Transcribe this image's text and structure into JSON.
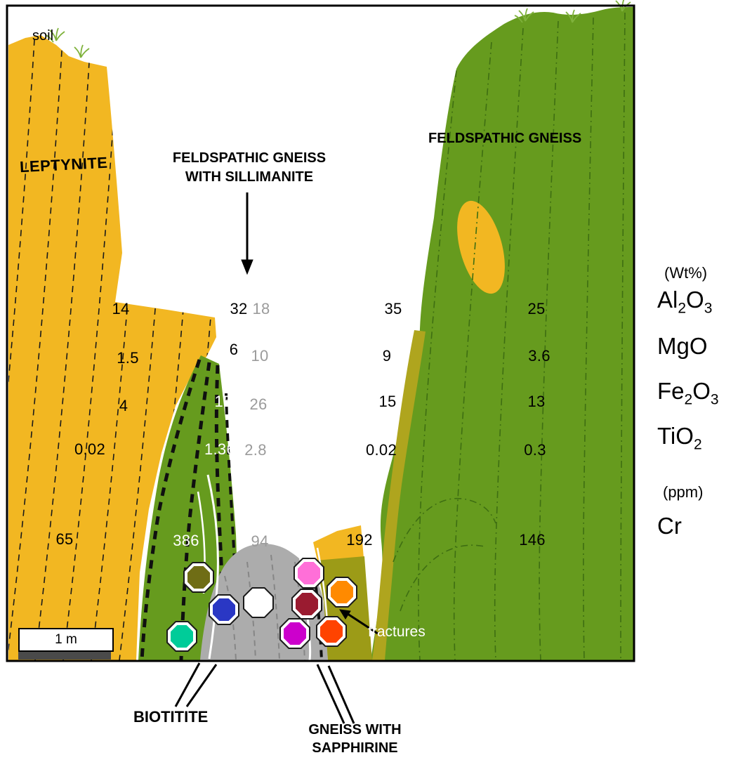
{
  "figure": {
    "labels": {
      "soil": "soil",
      "leptynite": "LEPTYNITE",
      "feldspathic_gneiss_sillimanite": "FELDSPATHIC GNEISS\nWITH SILLIMANITE",
      "feldspathic_gneiss": "FELDSPATHIC GNEISS",
      "fractures": "fractures",
      "biotitite": "BIOTITITE",
      "gneiss_sapphirine": "GNEISS WITH\nSAPPHIRINE",
      "scale": "1 m"
    },
    "legend": {
      "wt_units": "(Wt%)",
      "ppm_units": "(ppm)",
      "analytes": [
        "Al2O3",
        "MgO",
        "Fe2O3",
        "TiO2",
        "Cr"
      ]
    },
    "geochem_columns": [
      {
        "name": "column-1",
        "values": [
          "14",
          "1.5",
          "4",
          "0.02",
          "65"
        ]
      },
      {
        "name": "column-2",
        "values": [
          "32",
          "6",
          "15",
          "1.36",
          "386"
        ]
      },
      {
        "name": "column-3",
        "values": [
          "18",
          "10",
          "26",
          "2.8",
          "94"
        ]
      },
      {
        "name": "column-4",
        "values": [
          "35",
          "9",
          "15",
          "0.02",
          "192"
        ]
      },
      {
        "name": "column-5",
        "values": [
          "25",
          "3.6",
          "13",
          "0.3",
          "146"
        ]
      }
    ],
    "colors": {
      "leptynite_gold": "#F2B722",
      "gneiss_green": "#669B1E",
      "foliation_dark_green": "#3E6E12",
      "gray_unit": "#ACACAC",
      "gray_foliation": "#868686",
      "olive_band": "#9C9B17",
      "weathered_strip": "#AFA51E",
      "grass_green": "#7FB23C",
      "scalebar_gray": "#4A4A4A"
    },
    "samples": [
      {
        "name": "olive",
        "color": "#6F6D15"
      },
      {
        "name": "spring-green",
        "color": "#00CC99"
      },
      {
        "name": "blue",
        "color": "#2A37C4"
      },
      {
        "name": "white",
        "color": "#FFFFFF"
      },
      {
        "name": "magenta",
        "color": "#CC00CC"
      },
      {
        "name": "pink",
        "color": "#FF6FD8"
      },
      {
        "name": "dark-red",
        "color": "#9A1B30"
      },
      {
        "name": "orange-red",
        "color": "#FF4300"
      },
      {
        "name": "orange",
        "color": "#FF8A00"
      }
    ]
  }
}
